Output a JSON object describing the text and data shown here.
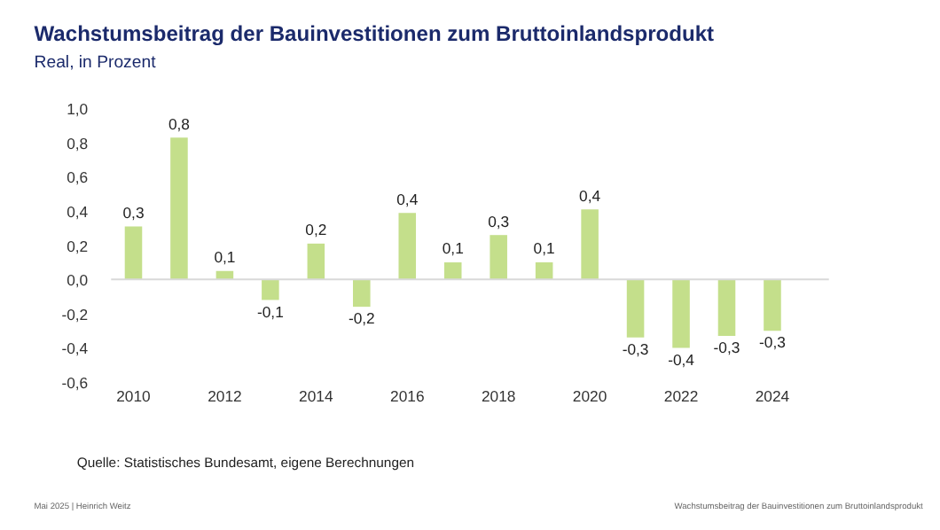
{
  "chart_data": {
    "type": "bar",
    "title": "Wachstumsbeitrag der Bauinvestitionen zum Bruttoinlandsprodukt",
    "subtitle": "Real, in Prozent",
    "categories": [
      "2010",
      null,
      "2012",
      null,
      "2014",
      null,
      "2016",
      null,
      "2018",
      null,
      "2020",
      null,
      "2022",
      null,
      "2024"
    ],
    "values": [
      0.31,
      0.83,
      0.05,
      -0.12,
      0.21,
      -0.16,
      0.39,
      0.1,
      0.26,
      0.1,
      0.41,
      -0.34,
      -0.4,
      -0.33,
      -0.3
    ],
    "value_labels": [
      "0,3",
      "0,8",
      "0,1",
      "-0,1",
      "0,2",
      "-0,2",
      "0,4",
      "0,1",
      "0,3",
      "0,1",
      "0,4",
      "-0,3",
      "-0,4",
      "-0,3",
      "-0,3"
    ],
    "color": "#c4df8b",
    "ylim": [
      -0.6,
      1.0
    ],
    "yticks": [
      {
        "value": -0.6,
        "label": "-0,6"
      },
      {
        "value": -0.4,
        "label": "-0,4"
      },
      {
        "value": -0.2,
        "label": "-0,2"
      },
      {
        "value": 0.0,
        "label": "0,0"
      },
      {
        "value": 0.2,
        "label": "0,2"
      },
      {
        "value": 0.4,
        "label": "0,4"
      },
      {
        "value": 0.6,
        "label": "0,6"
      },
      {
        "value": 0.8,
        "label": "0,8"
      },
      {
        "value": 1.0,
        "label": "1,0"
      }
    ],
    "ref_lines": [
      {
        "axis": "y",
        "value": 0,
        "color": "#d9d9d9"
      }
    ],
    "grid": false,
    "annotations": [
      "Quelle: Statistisches Bundesamt, eigene Berechnungen",
      "Mai 2025 | Heinrich Weitz",
      "Wachstumsbeitrag der Bauinvestitionen zum Bruttoinlandsprodukt"
    ]
  }
}
